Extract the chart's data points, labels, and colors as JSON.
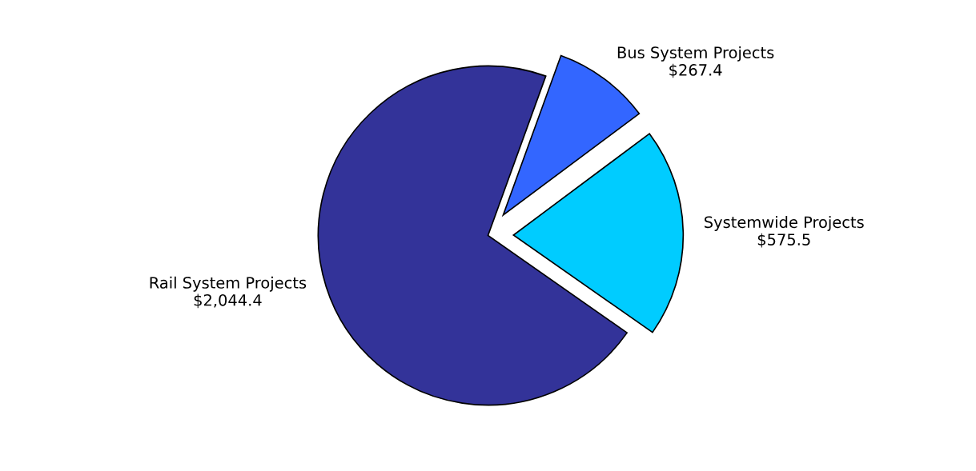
{
  "chart_data": {
    "type": "pie",
    "categories": [
      "Rail System Projects",
      "Bus System Projects",
      "Systemwide Projects"
    ],
    "values": [
      2044.4,
      267.4,
      575.5
    ],
    "value_labels": [
      "$2,044.4",
      "$267.4",
      "$575.5"
    ],
    "colors": [
      "#333399",
      "#3366ff",
      "#00ccff"
    ]
  }
}
